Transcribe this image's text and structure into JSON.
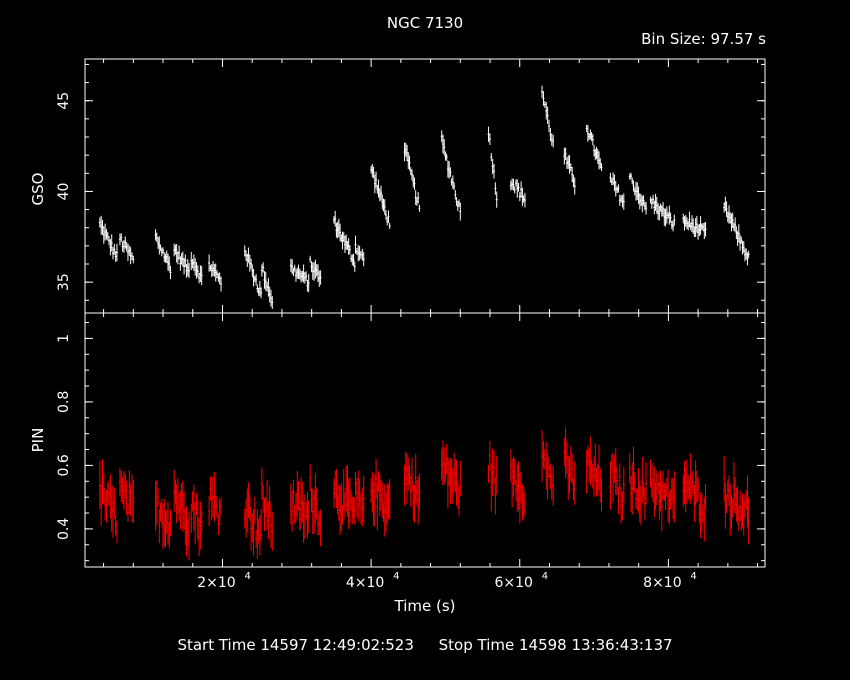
{
  "title": "NGC 7130",
  "bin_size": "Bin Size: 97.57 s",
  "xlabel": "Time (s)",
  "footer": {
    "start": "Start Time 14597 12:49:02:523",
    "stop": "Stop Time 14598 13:36:43:137"
  },
  "colors": {
    "top_series": "#ffffff",
    "bottom_series": "#ff0000",
    "axes": "#ffffff",
    "background": "#000000"
  },
  "chart_data": [
    {
      "type": "scatter",
      "panel": "top",
      "xlabel": "Time (s)",
      "ylabel": "GSO",
      "xlim": [
        1500,
        93000
      ],
      "ylim": [
        33.3,
        47.3
      ],
      "xticks": [
        20000,
        40000,
        60000,
        80000
      ],
      "xtick_labels": [
        "2×10",
        "4×10",
        "6×10",
        "8×10"
      ],
      "xtick_exponent": "4",
      "yticks": [
        35,
        40,
        45
      ],
      "ytick_labels": [
        "35",
        "40",
        "45"
      ],
      "segments": [
        {
          "x": [
            3500,
            5800
          ],
          "y": [
            38.2,
            36.4
          ]
        },
        {
          "x": [
            6200,
            8000
          ],
          "y": [
            37.4,
            36.2
          ]
        },
        {
          "x": [
            11000,
            13000
          ],
          "y": [
            37.5,
            35.8
          ]
        },
        {
          "x": [
            13500,
            15500
          ],
          "y": [
            36.8,
            35.6
          ]
        },
        {
          "x": [
            15800,
            17200
          ],
          "y": [
            36.4,
            35.2
          ]
        },
        {
          "x": [
            18200,
            19800
          ],
          "y": [
            36.0,
            35.0
          ]
        },
        {
          "x": [
            23000,
            25200
          ],
          "y": [
            36.8,
            34.3
          ]
        },
        {
          "x": [
            25300,
            26700
          ],
          "y": [
            35.8,
            34.0
          ]
        },
        {
          "x": [
            29200,
            31600
          ],
          "y": [
            35.8,
            35.0
          ]
        },
        {
          "x": [
            31800,
            33200
          ],
          "y": [
            36.0,
            35.2
          ]
        },
        {
          "x": [
            35000,
            37800
          ],
          "y": [
            38.4,
            36.1
          ]
        },
        {
          "x": [
            37900,
            39000
          ],
          "y": [
            37.0,
            36.2
          ]
        },
        {
          "x": [
            40000,
            42500
          ],
          "y": [
            41.3,
            38.2
          ]
        },
        {
          "x": [
            44500,
            46500
          ],
          "y": [
            42.4,
            39.1
          ]
        },
        {
          "x": [
            49500,
            52000
          ],
          "y": [
            42.8,
            38.9
          ]
        },
        {
          "x": [
            55800,
            56900
          ],
          "y": [
            43.4,
            39.7
          ]
        },
        {
          "x": [
            58800,
            60700
          ],
          "y": [
            40.6,
            39.6
          ]
        },
        {
          "x": [
            63000,
            64500
          ],
          "y": [
            45.5,
            42.6
          ]
        },
        {
          "x": [
            66000,
            67400
          ],
          "y": [
            42.0,
            40.5
          ]
        },
        {
          "x": [
            69000,
            71000
          ],
          "y": [
            43.6,
            41.2
          ]
        },
        {
          "x": [
            72200,
            74000
          ],
          "y": [
            40.7,
            39.4
          ]
        },
        {
          "x": [
            74800,
            77000
          ],
          "y": [
            40.8,
            39.0
          ]
        },
        {
          "x": [
            77600,
            80800
          ],
          "y": [
            39.5,
            38.2
          ]
        },
        {
          "x": [
            82000,
            85000
          ],
          "y": [
            38.4,
            37.7
          ]
        },
        {
          "x": [
            87500,
            90800
          ],
          "y": [
            39.2,
            36.3
          ]
        }
      ]
    },
    {
      "type": "scatter",
      "panel": "bottom",
      "xlabel": "Time (s)",
      "ylabel": "PIN",
      "xlim": [
        1500,
        93000
      ],
      "ylim": [
        0.28,
        1.08
      ],
      "xticks": [
        20000,
        40000,
        60000,
        80000
      ],
      "yticks": [
        0.4,
        0.6,
        0.8,
        1.0
      ],
      "ytick_labels": [
        "0.4",
        "0.6",
        "0.8",
        "1"
      ],
      "segments": [
        {
          "x": [
            3500,
            5800
          ],
          "y": [
            0.52,
            0.43
          ]
        },
        {
          "x": [
            6200,
            8000
          ],
          "y": [
            0.52,
            0.45
          ]
        },
        {
          "x": [
            11000,
            13000
          ],
          "y": [
            0.47,
            0.42
          ]
        },
        {
          "x": [
            13500,
            15500
          ],
          "y": [
            0.52,
            0.42
          ]
        },
        {
          "x": [
            15800,
            17200
          ],
          "y": [
            0.48,
            0.4
          ]
        },
        {
          "x": [
            18200,
            19800
          ],
          "y": [
            0.5,
            0.45
          ]
        },
        {
          "x": [
            23000,
            25200
          ],
          "y": [
            0.48,
            0.38
          ]
        },
        {
          "x": [
            25300,
            26700
          ],
          "y": [
            0.5,
            0.42
          ]
        },
        {
          "x": [
            29200,
            31600
          ],
          "y": [
            0.49,
            0.43
          ]
        },
        {
          "x": [
            31800,
            33200
          ],
          "y": [
            0.52,
            0.44
          ]
        },
        {
          "x": [
            35000,
            37800
          ],
          "y": [
            0.52,
            0.45
          ]
        },
        {
          "x": [
            37900,
            39000
          ],
          "y": [
            0.5,
            0.45
          ]
        },
        {
          "x": [
            40000,
            42500
          ],
          "y": [
            0.53,
            0.47
          ]
        },
        {
          "x": [
            44500,
            46500
          ],
          "y": [
            0.58,
            0.5
          ]
        },
        {
          "x": [
            49500,
            52000
          ],
          "y": [
            0.6,
            0.52
          ]
        },
        {
          "x": [
            55800,
            56900
          ],
          "y": [
            0.6,
            0.53
          ]
        },
        {
          "x": [
            58800,
            60700
          ],
          "y": [
            0.58,
            0.52
          ]
        },
        {
          "x": [
            63000,
            64500
          ],
          "y": [
            0.62,
            0.55
          ]
        },
        {
          "x": [
            66000,
            67400
          ],
          "y": [
            0.6,
            0.55
          ]
        },
        {
          "x": [
            69000,
            71000
          ],
          "y": [
            0.6,
            0.54
          ]
        },
        {
          "x": [
            72200,
            74000
          ],
          "y": [
            0.57,
            0.5
          ]
        },
        {
          "x": [
            74800,
            77000
          ],
          "y": [
            0.56,
            0.5
          ]
        },
        {
          "x": [
            77600,
            80800
          ],
          "y": [
            0.55,
            0.47
          ]
        },
        {
          "x": [
            82000,
            85000
          ],
          "y": [
            0.55,
            0.47
          ]
        },
        {
          "x": [
            87500,
            90800
          ],
          "y": [
            0.52,
            0.45
          ]
        }
      ]
    }
  ]
}
